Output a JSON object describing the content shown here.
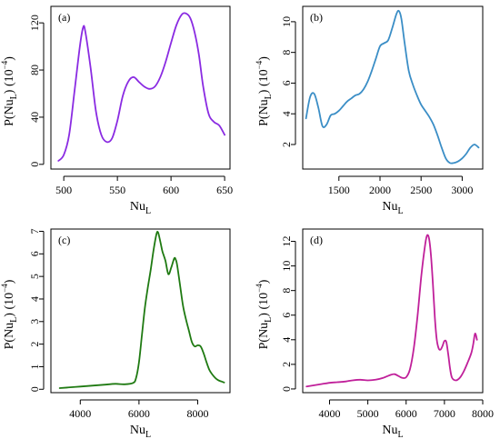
{
  "chart_data": [
    {
      "type": "line",
      "panel_label": "(a)",
      "xlabel": "Nu_L",
      "ylabel": "P(Nu_L) (10^-4)",
      "xlim": [
        488,
        655
      ],
      "ylim": [
        -4,
        134
      ],
      "xticks": [
        500,
        550,
        600,
        650
      ],
      "yticks": [
        0,
        40,
        80,
        120
      ],
      "color": "#8a2be2",
      "series": [
        {
          "x": [
            495,
            500,
            505,
            510,
            515,
            518,
            520,
            525,
            530,
            535,
            540,
            545,
            550,
            555,
            560,
            565,
            570,
            575,
            580,
            585,
            590,
            595,
            600,
            605,
            610,
            614,
            618,
            622,
            626,
            630,
            635,
            640,
            645,
            650
          ],
          "y": [
            3,
            8,
            25,
            62,
            100,
            116,
            113,
            82,
            45,
            25,
            19,
            22,
            37,
            58,
            70,
            74,
            70,
            66,
            64,
            66,
            74,
            87,
            103,
            118,
            127,
            128,
            124,
            112,
            93,
            66,
            43,
            36,
            33,
            25
          ]
        }
      ]
    },
    {
      "type": "line",
      "panel_label": "(b)",
      "xlabel": "Nu_L",
      "ylabel": "P(Nu_L) (10^-4)",
      "xlim": [
        1060,
        3250
      ],
      "ylim": [
        0.4,
        11.0
      ],
      "xticks": [
        1500,
        2000,
        2500,
        3000
      ],
      "yticks": [
        2,
        4,
        6,
        8,
        10
      ],
      "color": "#3b8ec6",
      "series": [
        {
          "x": [
            1100,
            1150,
            1200,
            1250,
            1300,
            1350,
            1400,
            1450,
            1500,
            1550,
            1600,
            1650,
            1700,
            1750,
            1800,
            1850,
            1900,
            1950,
            2000,
            2050,
            2100,
            2150,
            2200,
            2230,
            2260,
            2300,
            2350,
            2400,
            2450,
            2500,
            2550,
            2600,
            2650,
            2700,
            2750,
            2800,
            2850,
            2900,
            2950,
            3000,
            3050,
            3100,
            3150,
            3200
          ],
          "y": [
            3.7,
            5.1,
            5.3,
            4.4,
            3.2,
            3.3,
            3.9,
            4.0,
            4.2,
            4.5,
            4.8,
            5.0,
            5.2,
            5.3,
            5.6,
            6.1,
            6.8,
            7.6,
            8.4,
            8.6,
            8.8,
            9.6,
            10.5,
            10.7,
            10.2,
            8.6,
            6.8,
            5.9,
            5.2,
            4.6,
            4.2,
            3.8,
            3.3,
            2.6,
            1.8,
            1.1,
            0.8,
            0.8,
            0.9,
            1.1,
            1.4,
            1.8,
            2.0,
            1.8
          ]
        }
      ]
    },
    {
      "type": "line",
      "panel_label": "(c)",
      "xlabel": "Nu_L",
      "ylabel": "P(Nu_L) (10^-4)",
      "xlim": [
        3000,
        9100
      ],
      "ylim": [
        -0.15,
        7.1
      ],
      "xticks": [
        4000,
        6000,
        8000
      ],
      "yticks": [
        0,
        1,
        2,
        3,
        4,
        5,
        6,
        7
      ],
      "color": "#1f7a12",
      "series": [
        {
          "x": [
            3300,
            3600,
            4000,
            4400,
            4800,
            5200,
            5500,
            5800,
            5900,
            6000,
            6100,
            6200,
            6300,
            6400,
            6500,
            6600,
            6650,
            6700,
            6750,
            6800,
            6900,
            7000,
            7100,
            7200,
            7250,
            7300,
            7400,
            7500,
            7600,
            7700,
            7800,
            7900,
            8000,
            8100,
            8200,
            8300,
            8400,
            8500,
            8600,
            8700,
            8800,
            8900
          ],
          "y": [
            0.05,
            0.08,
            0.12,
            0.16,
            0.2,
            0.24,
            0.22,
            0.28,
            0.5,
            1.2,
            2.4,
            3.6,
            4.5,
            5.3,
            6.2,
            6.9,
            6.95,
            6.7,
            6.4,
            6.1,
            5.7,
            5.1,
            5.4,
            5.8,
            5.75,
            5.5,
            4.6,
            3.7,
            3.1,
            2.6,
            2.1,
            1.9,
            1.95,
            1.9,
            1.6,
            1.2,
            0.85,
            0.65,
            0.5,
            0.4,
            0.35,
            0.3
          ]
        }
      ]
    },
    {
      "type": "line",
      "panel_label": "(d)",
      "xlabel": "Nu_L",
      "ylabel": "P(Nu_L) (10^-4)",
      "xlim": [
        3300,
        8000
      ],
      "ylim": [
        -0.3,
        13.0
      ],
      "xticks": [
        4000,
        5000,
        6000,
        7000,
        8000
      ],
      "yticks": [
        0,
        2,
        4,
        6,
        8,
        10,
        12
      ],
      "color": "#c0209a",
      "series": [
        {
          "x": [
            3400,
            3600,
            3800,
            4000,
            4200,
            4400,
            4600,
            4800,
            5000,
            5200,
            5400,
            5600,
            5700,
            5800,
            5900,
            6000,
            6100,
            6200,
            6300,
            6400,
            6500,
            6550,
            6600,
            6650,
            6700,
            6750,
            6800,
            6850,
            6900,
            6950,
            7000,
            7050,
            7100,
            7150,
            7200,
            7300,
            7400,
            7500,
            7600,
            7700,
            7750,
            7800,
            7850
          ],
          "y": [
            0.2,
            0.3,
            0.4,
            0.5,
            0.55,
            0.6,
            0.7,
            0.75,
            0.7,
            0.75,
            0.9,
            1.15,
            1.2,
            1.05,
            0.9,
            0.95,
            1.6,
            3.3,
            6.0,
            9.3,
            11.8,
            12.5,
            12.2,
            10.8,
            8.5,
            5.8,
            4.0,
            3.3,
            3.2,
            3.5,
            3.9,
            3.8,
            2.8,
            1.6,
            0.9,
            0.7,
            0.9,
            1.4,
            2.1,
            2.9,
            3.6,
            4.5,
            4.0
          ]
        }
      ]
    }
  ]
}
